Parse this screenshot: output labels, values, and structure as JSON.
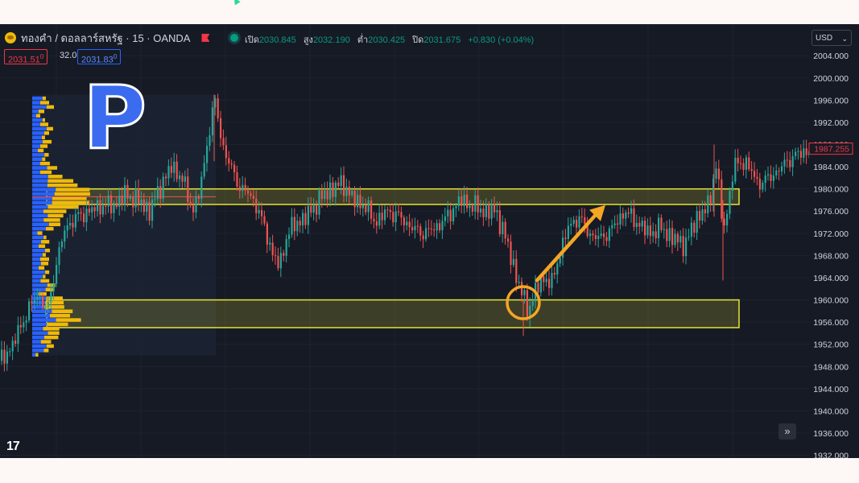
{
  "header": {
    "symbol": "ทองคำ / ดอลลาร์สหรัฐ · 15 · OANDA",
    "ohlc": {
      "open_label": "เปิด",
      "open": "2030.845",
      "high_label": "สูง",
      "high": "2032.190",
      "low_label": "ต่ำ",
      "low": "2030.425",
      "close_label": "ปิด",
      "close": "2031.675",
      "change": "+0.830 (+0.04%)"
    },
    "bid": "2031.51",
    "bid_sup": "0",
    "spread": "32.0",
    "ask": "2031.83",
    "ask_sup": "0"
  },
  "currency": {
    "label": "USD",
    "chevron": "⌄"
  },
  "annotation_letter": "P",
  "logo_text": "17",
  "forward_button": "»",
  "icons": [
    "coin-icon",
    "flag-icon",
    "live-dot-icon",
    "chevron-down-icon",
    "double-chevron-right-icon"
  ],
  "colors": {
    "background": "#161a25",
    "up": "#26a69a",
    "down": "#ef5350",
    "zone": "#e8e337",
    "profile_buy": "#2962ff",
    "profile_sell": "#f0b90b",
    "arrow": "#f5a623"
  },
  "chart_data": {
    "type": "candlestick",
    "y_axis": {
      "ticks": [
        "2004.000",
        "2000.000",
        "1996.000",
        "1992.000",
        "1988.000",
        "1984.000",
        "1980.000",
        "1976.000",
        "1972.000",
        "1968.000",
        "1964.000",
        "1960.000",
        "1956.000",
        "1952.000",
        "1948.000",
        "1944.000",
        "1940.000",
        "1936.000",
        "1932.000"
      ],
      "range": [
        1931.5,
        2006.5
      ],
      "current_price_label": "1987.255",
      "current_price": 1987.255
    },
    "zones": [
      {
        "from": 1977.2,
        "to": 1980.0
      },
      {
        "from": 1955.0,
        "to": 1960.0
      }
    ],
    "circle_price": 1959.5,
    "arrow": {
      "from_price": 1963.5,
      "to_price": 1976.5
    },
    "close_path": [
      [
        0,
        1949
      ],
      [
        15,
        1952
      ],
      [
        30,
        1957
      ],
      [
        45,
        1961
      ],
      [
        58,
        1958
      ],
      [
        68,
        1966
      ],
      [
        80,
        1973
      ],
      [
        95,
        1975
      ],
      [
        110,
        1976
      ],
      [
        125,
        1977
      ],
      [
        140,
        1977
      ],
      [
        155,
        1979
      ],
      [
        170,
        1978
      ],
      [
        185,
        1976
      ],
      [
        200,
        1981
      ],
      [
        212,
        1984
      ],
      [
        225,
        1982
      ],
      [
        238,
        1976
      ],
      [
        248,
        1980
      ],
      [
        258,
        1990
      ],
      [
        266,
        1996
      ],
      [
        275,
        1988
      ],
      [
        285,
        1984
      ],
      [
        298,
        1980
      ],
      [
        310,
        1979
      ],
      [
        320,
        1976
      ],
      [
        330,
        1972
      ],
      [
        338,
        1968
      ],
      [
        346,
        1966
      ],
      [
        356,
        1972
      ],
      [
        368,
        1974
      ],
      [
        380,
        1975
      ],
      [
        395,
        1978
      ],
      [
        410,
        1980
      ],
      [
        425,
        1981
      ],
      [
        438,
        1978
      ],
      [
        452,
        1977
      ],
      [
        465,
        1974
      ],
      [
        480,
        1976
      ],
      [
        495,
        1975
      ],
      [
        510,
        1973
      ],
      [
        525,
        1972
      ],
      [
        540,
        1973
      ],
      [
        555,
        1975
      ],
      [
        570,
        1978
      ],
      [
        585,
        1977
      ],
      [
        600,
        1976
      ],
      [
        615,
        1976
      ],
      [
        625,
        1972
      ],
      [
        635,
        1967
      ],
      [
        645,
        1962
      ],
      [
        655,
        1958
      ],
      [
        665,
        1962
      ],
      [
        675,
        1964
      ],
      [
        685,
        1963
      ],
      [
        695,
        1969
      ],
      [
        705,
        1973
      ],
      [
        718,
        1975
      ],
      [
        730,
        1972
      ],
      [
        745,
        1971
      ],
      [
        760,
        1973
      ],
      [
        775,
        1976
      ],
      [
        790,
        1974
      ],
      [
        805,
        1972
      ],
      [
        820,
        1973
      ],
      [
        835,
        1971
      ],
      [
        850,
        1970
      ],
      [
        865,
        1975
      ],
      [
        880,
        1977
      ],
      [
        888,
        1985
      ],
      [
        898,
        1972
      ],
      [
        910,
        1984
      ],
      [
        925,
        1985
      ],
      [
        940,
        1981
      ],
      [
        955,
        1982
      ],
      [
        970,
        1984
      ],
      [
        985,
        1986
      ],
      [
        1005,
        1987
      ]
    ],
    "volume_profile_top": 1997,
    "volume_profile_bottom": 1950
  }
}
